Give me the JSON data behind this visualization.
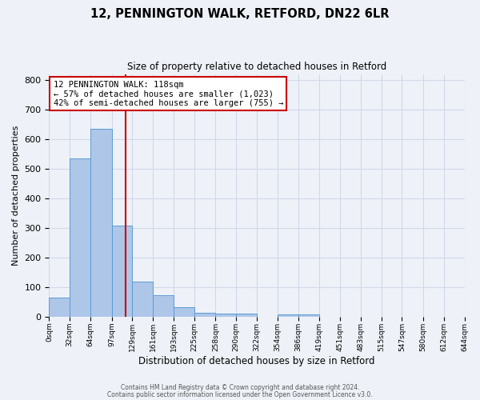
{
  "title": "12, PENNINGTON WALK, RETFORD, DN22 6LR",
  "subtitle": "Size of property relative to detached houses in Retford",
  "xlabel": "Distribution of detached houses by size in Retford",
  "ylabel": "Number of detached properties",
  "bar_left_edges": [
    0,
    32,
    64,
    97,
    129,
    161,
    193,
    225,
    258,
    290,
    322,
    354,
    386,
    419,
    451,
    483,
    515,
    547,
    580,
    612
  ],
  "bar_widths": [
    32,
    32,
    33,
    32,
    32,
    32,
    32,
    33,
    32,
    32,
    32,
    32,
    33,
    32,
    32,
    32,
    32,
    33,
    32,
    32
  ],
  "bar_heights": [
    65,
    535,
    635,
    310,
    120,
    75,
    32,
    15,
    12,
    12,
    0,
    10,
    10,
    0,
    0,
    0,
    0,
    0,
    0,
    0
  ],
  "bar_color": "#aec6e8",
  "bar_edge_color": "#5b9bd5",
  "grid_color": "#d0d8e8",
  "background_color": "#eef2f8",
  "vline_x": 118,
  "vline_color": "#cc0000",
  "ylim": [
    0,
    820
  ],
  "yticks": [
    0,
    100,
    200,
    300,
    400,
    500,
    600,
    700,
    800
  ],
  "xtick_labels": [
    "0sqm",
    "32sqm",
    "64sqm",
    "97sqm",
    "129sqm",
    "161sqm",
    "193sqm",
    "225sqm",
    "258sqm",
    "290sqm",
    "322sqm",
    "354sqm",
    "386sqm",
    "419sqm",
    "451sqm",
    "483sqm",
    "515sqm",
    "547sqm",
    "580sqm",
    "612sqm",
    "644sqm"
  ],
  "annotation_title": "12 PENNINGTON WALK: 118sqm",
  "annotation_line1": "← 57% of detached houses are smaller (1,023)",
  "annotation_line2": "42% of semi-detached houses are larger (755) →",
  "annotation_box_color": "#ffffff",
  "annotation_box_edge": "#cc0000",
  "footnote1": "Contains HM Land Registry data © Crown copyright and database right 2024.",
  "footnote2": "Contains public sector information licensed under the Open Government Licence v3.0."
}
